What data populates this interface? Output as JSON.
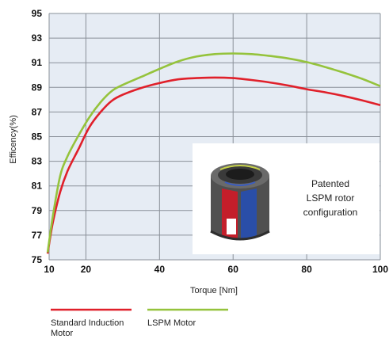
{
  "chart_data": {
    "type": "line",
    "title": "",
    "xlabel": "Torque [Nm]",
    "ylabel": "Efficency(%)",
    "xlim": [
      10,
      100
    ],
    "ylim": [
      75,
      95
    ],
    "xticks": [
      10,
      20,
      40,
      60,
      80,
      100
    ],
    "yticks": [
      75,
      77,
      79,
      81,
      83,
      85,
      87,
      89,
      91,
      93,
      95
    ],
    "grid": true,
    "legend_position": "bottom-left",
    "background_color": "#e6ecf4",
    "series": [
      {
        "name": "Standard Induction Motor",
        "color": "#e0202a",
        "x": [
          9.6,
          11,
          13,
          15,
          18,
          21,
          24,
          27,
          30,
          35,
          40,
          45,
          50,
          55,
          60,
          65,
          70,
          75,
          80,
          85,
          90,
          95,
          100
        ],
        "y": [
          75.5,
          78.0,
          80.5,
          82.2,
          84.0,
          85.8,
          87.0,
          87.9,
          88.4,
          88.95,
          89.35,
          89.65,
          89.75,
          89.8,
          89.75,
          89.6,
          89.4,
          89.15,
          88.85,
          88.6,
          88.3,
          87.95,
          87.55
        ]
      },
      {
        "name": "LSPM Motor",
        "color": "#95c33c",
        "x": [
          9.6,
          11,
          13,
          15,
          18,
          21,
          24,
          27,
          30,
          35,
          40,
          45,
          50,
          55,
          60,
          65,
          70,
          75,
          80,
          85,
          90,
          95,
          100
        ],
        "y": [
          75.6,
          78.5,
          81.8,
          83.4,
          85.1,
          86.6,
          87.8,
          88.7,
          89.2,
          89.85,
          90.5,
          91.1,
          91.5,
          91.7,
          91.75,
          91.7,
          91.55,
          91.35,
          91.05,
          90.65,
          90.2,
          89.7,
          89.1
        ]
      }
    ],
    "annotation": {
      "line1": "Patented",
      "line2": "LSPM rotor",
      "line3": "configuration"
    }
  }
}
